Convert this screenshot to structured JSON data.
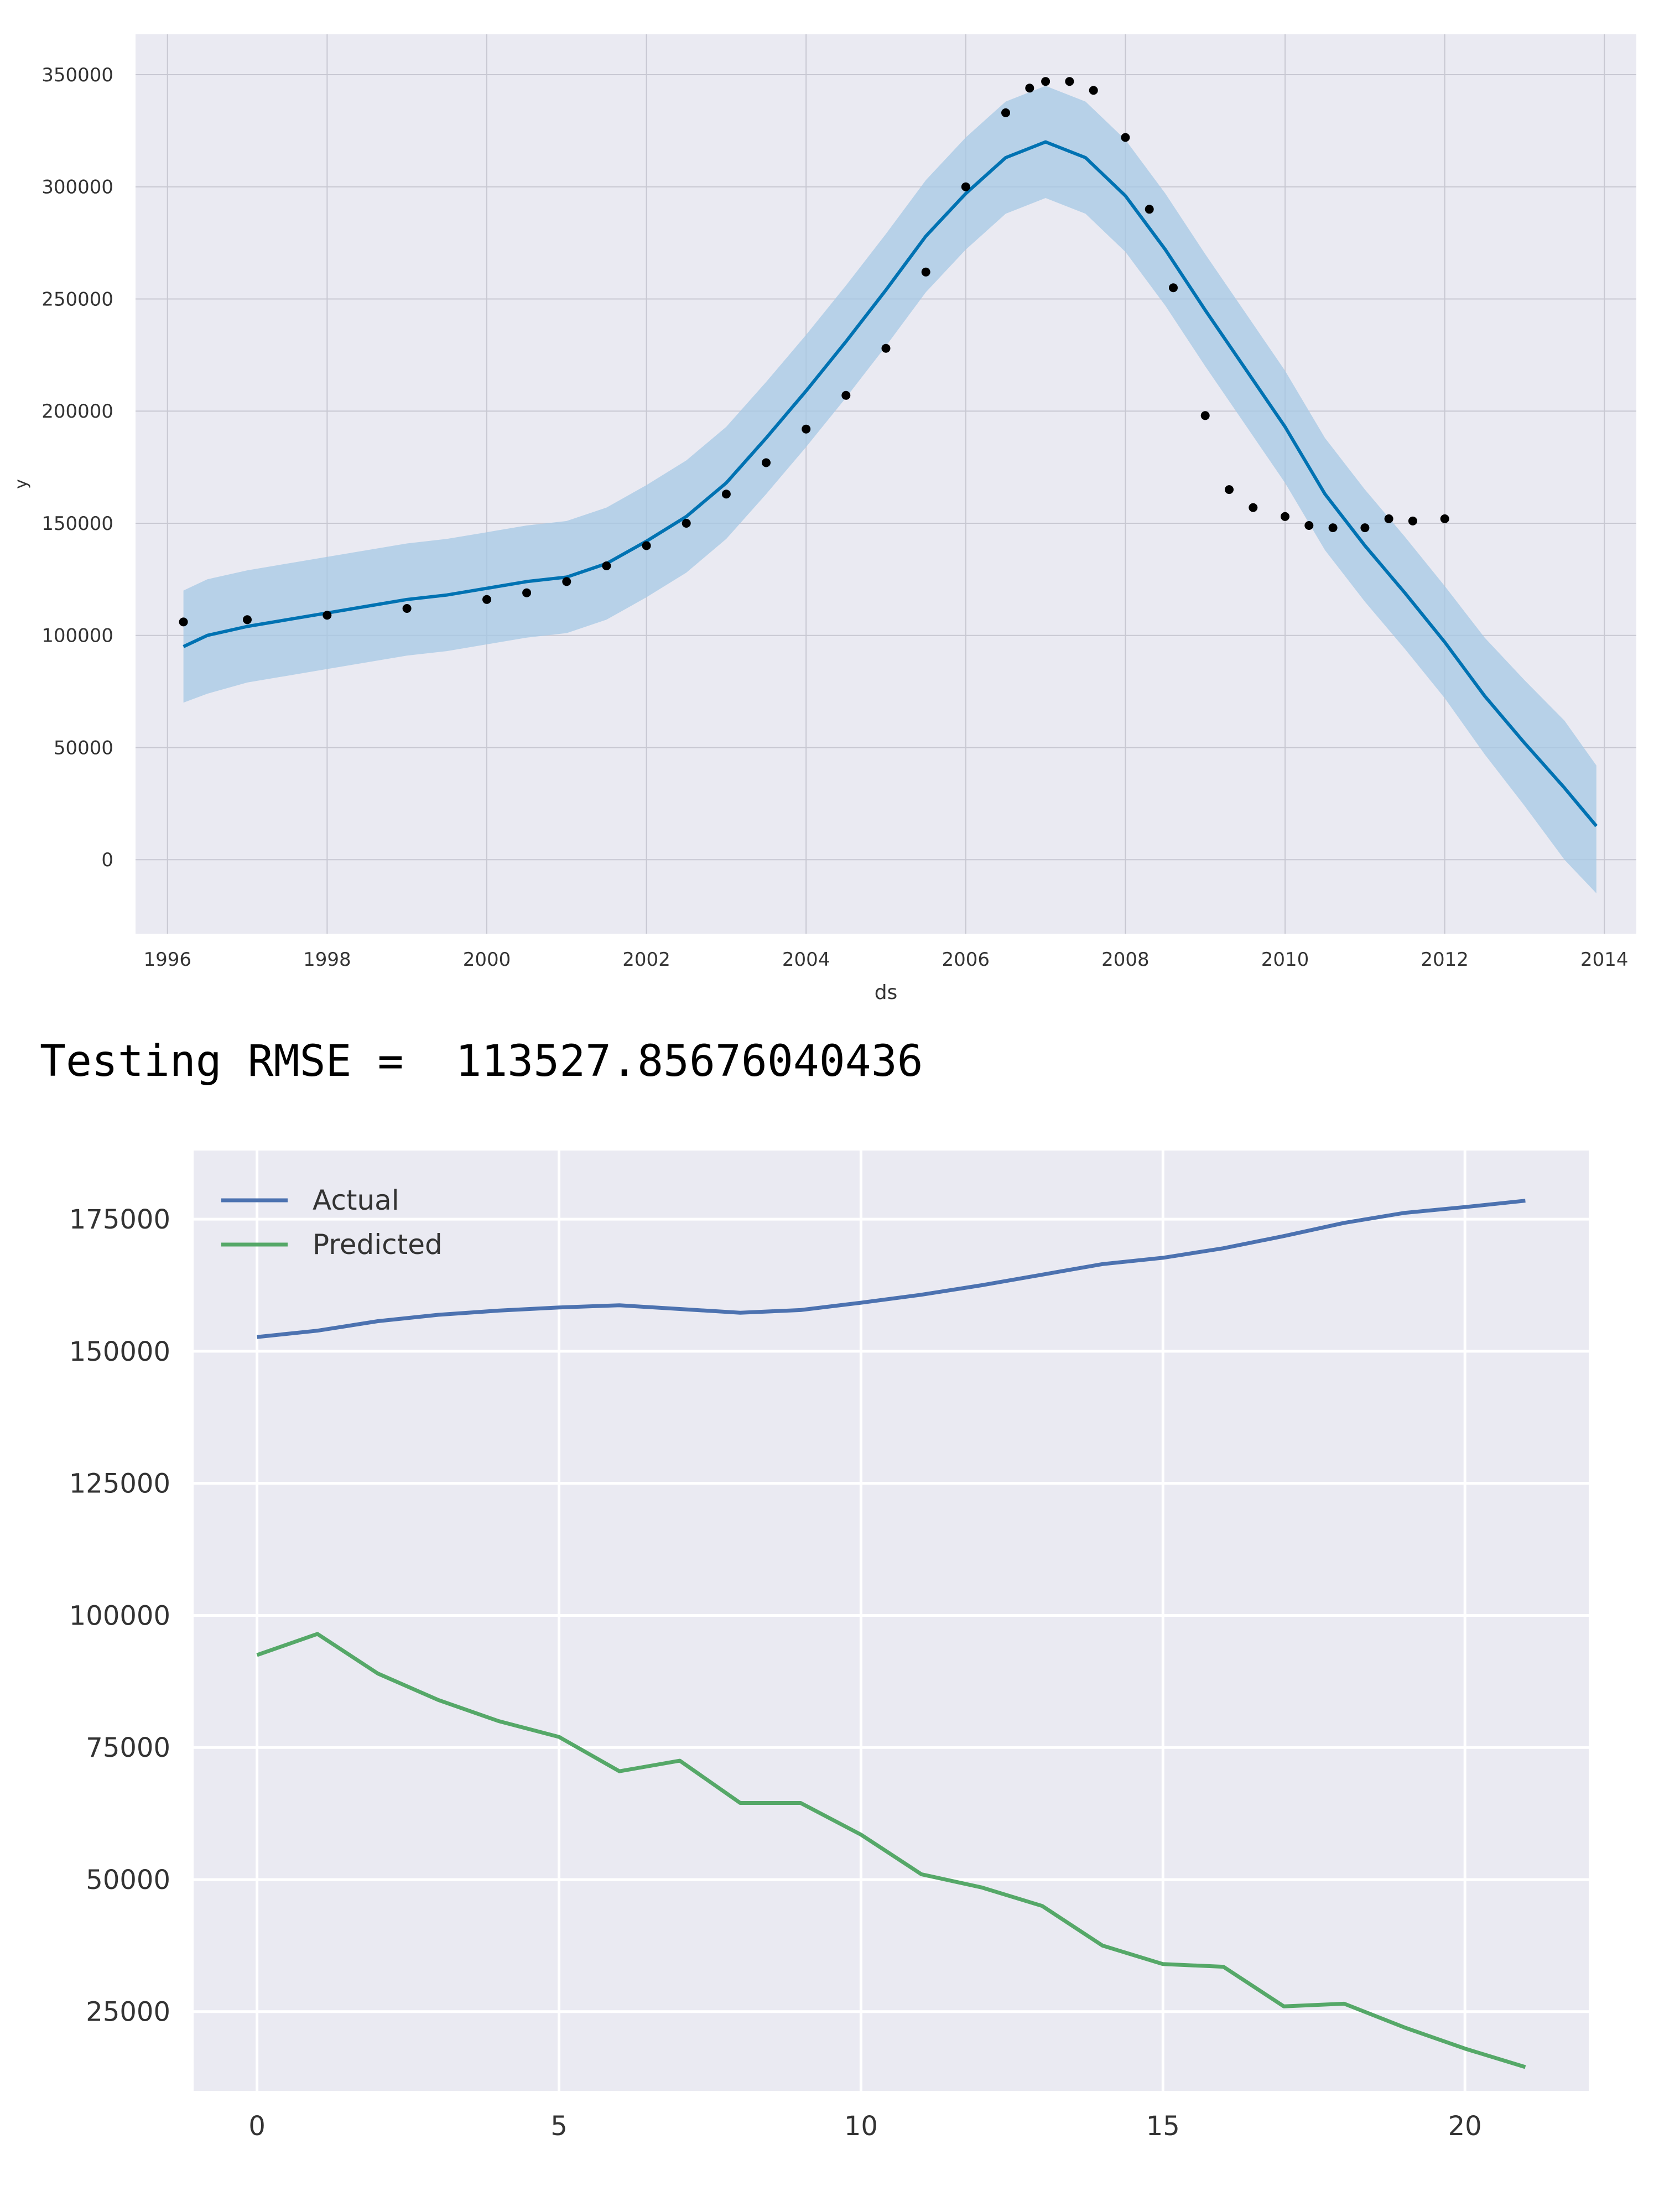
{
  "output_text": "Testing RMSE =  113527.85676040436",
  "chart_data": [
    {
      "type": "line",
      "title": "",
      "xlabel": "ds",
      "ylabel": "y",
      "xlim": [
        1995.6,
        2014.4
      ],
      "ylim": [
        -33000,
        368000
      ],
      "x_ticks": [
        1996,
        1998,
        2000,
        2002,
        2004,
        2006,
        2008,
        2010,
        2012,
        2014
      ],
      "y_ticks": [
        0,
        50000,
        100000,
        150000,
        200000,
        250000,
        300000,
        350000
      ],
      "grid": true,
      "colors": {
        "background": "#eaeaf2",
        "grid": "#c8c8d2",
        "forecast": "#0072b2",
        "interval": "#a6c8e4",
        "observed": "#000000"
      },
      "observed": {
        "x": [
          1996.2,
          1997,
          1998,
          1999,
          2000,
          2000.5,
          2001,
          2001.5,
          2002,
          2002.5,
          2003,
          2003.5,
          2004,
          2004.5,
          2005,
          2005.5,
          2006,
          2006.5,
          2006.8,
          2007,
          2007.3,
          2007.6,
          2008,
          2008.3,
          2008.6,
          2009,
          2009.3,
          2009.6,
          2010,
          2010.3,
          2010.6,
          2011,
          2011.3,
          2011.6,
          2012
        ],
        "y": [
          106000,
          107000,
          109000,
          112000,
          116000,
          119000,
          124000,
          131000,
          140000,
          150000,
          163000,
          177000,
          192000,
          207000,
          228000,
          262000,
          300000,
          333000,
          344000,
          347000,
          347000,
          343000,
          322000,
          290000,
          255000,
          198000,
          165000,
          157000,
          153000,
          149000,
          148000,
          148000,
          152000,
          151000,
          152000
        ]
      },
      "forecast": {
        "x": [
          1996.2,
          1996.5,
          1997,
          1997.5,
          1998,
          1998.5,
          1999,
          1999.5,
          2000,
          2000.5,
          2001,
          2001.5,
          2002,
          2002.5,
          2003,
          2003.5,
          2004,
          2004.5,
          2005,
          2005.5,
          2006,
          2006.5,
          2007,
          2007.5,
          2008,
          2008.5,
          2009,
          2009.5,
          2010,
          2010.5,
          2011,
          2011.5,
          2012,
          2012.5,
          2013,
          2013.5,
          2013.9
        ],
        "y": [
          95000,
          100000,
          104000,
          107000,
          110000,
          113000,
          116000,
          118000,
          121000,
          124000,
          126000,
          132000,
          142000,
          153000,
          168000,
          188000,
          209000,
          231000,
          254000,
          278000,
          297000,
          313000,
          320000,
          313000,
          296000,
          272000,
          245000,
          219000,
          193000,
          163000,
          140000,
          119000,
          97000,
          73000,
          52000,
          32000,
          15000
        ],
        "lower": [
          70000,
          74000,
          79000,
          82000,
          85000,
          88000,
          91000,
          93000,
          96000,
          99000,
          101000,
          107000,
          117000,
          128000,
          143000,
          163000,
          184000,
          206000,
          229000,
          253000,
          272000,
          288000,
          295000,
          288000,
          271000,
          247000,
          220000,
          194000,
          168000,
          138000,
          115000,
          94000,
          72000,
          47000,
          24000,
          0,
          -15000
        ],
        "upper": [
          120000,
          125000,
          129000,
          132000,
          135000,
          138000,
          141000,
          143000,
          146000,
          149000,
          151000,
          157000,
          167000,
          178000,
          193000,
          213000,
          234000,
          256000,
          279000,
          303000,
          322000,
          338000,
          345000,
          338000,
          321000,
          297000,
          270000,
          244000,
          218000,
          188000,
          165000,
          144000,
          122000,
          99000,
          80000,
          62000,
          42000
        ]
      }
    },
    {
      "type": "line",
      "title": "",
      "xlabel": "",
      "ylabel": "",
      "xlim": [
        -1.05,
        22.05
      ],
      "ylim": [
        10000,
        188000
      ],
      "x_ticks": [
        0,
        5,
        10,
        15,
        20
      ],
      "y_ticks": [
        25000,
        50000,
        75000,
        100000,
        125000,
        150000,
        175000
      ],
      "grid": true,
      "legend": "top-left",
      "colors": {
        "background": "#eaeaf2",
        "grid": "#ffffff"
      },
      "x": [
        0,
        1,
        2,
        3,
        4,
        5,
        6,
        7,
        8,
        9,
        10,
        11,
        12,
        13,
        14,
        15,
        16,
        17,
        18,
        19,
        20,
        21
      ],
      "series": [
        {
          "name": "Actual",
          "color": "#4c72b0",
          "values": [
            152700,
            153900,
            155700,
            156900,
            157700,
            158300,
            158700,
            158000,
            157300,
            157800,
            159200,
            160700,
            162500,
            164500,
            166500,
            167700,
            169500,
            171800,
            174300,
            176200,
            177300,
            178500
          ]
        },
        {
          "name": "Predicted",
          "color": "#55a868",
          "values": [
            92500,
            96500,
            89000,
            84000,
            80000,
            77000,
            70500,
            72500,
            64500,
            64500,
            58500,
            51000,
            48500,
            45000,
            37500,
            34000,
            33500,
            26000,
            26500,
            22000,
            18000,
            14500
          ]
        }
      ]
    }
  ]
}
